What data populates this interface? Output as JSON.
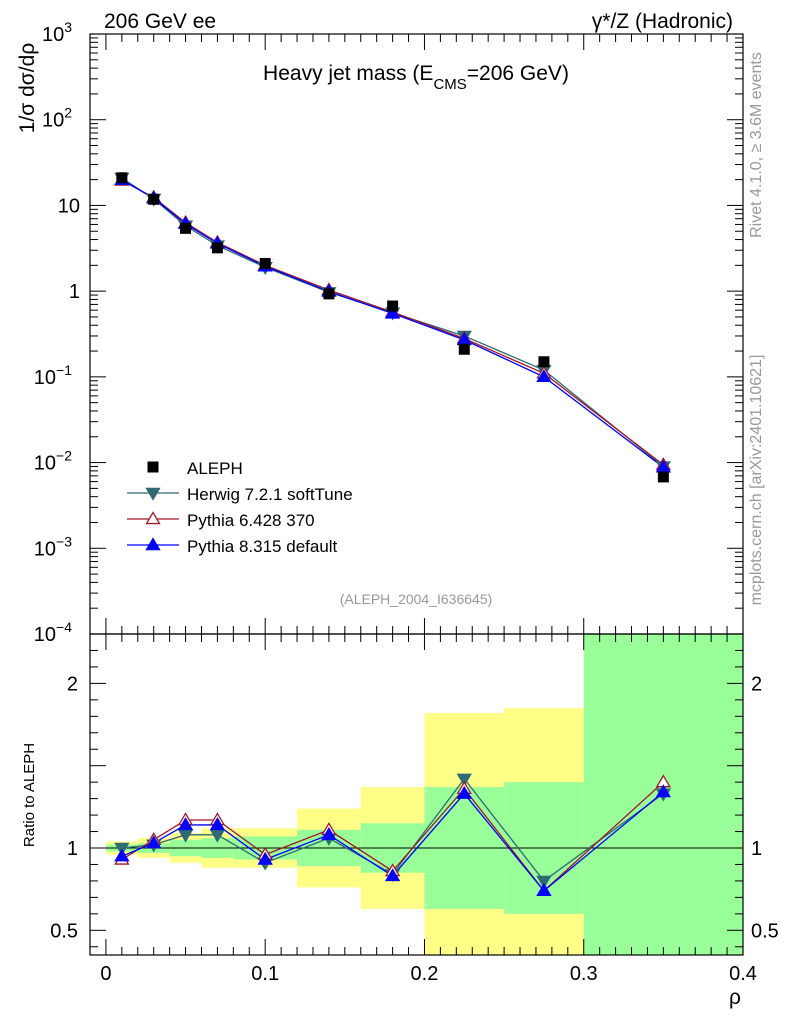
{
  "header": {
    "left": "206 GeV ee",
    "right": "γ*/Z (Hadronic)"
  },
  "side_labels": {
    "rivet": "Rivet 4.1.0, ≥ 3.6M events",
    "mcplots": "mcplots.cern.ch [arXiv:2401.10621]"
  },
  "chart_data": {
    "type": "line",
    "title_main": "Heavy jet mass (E",
    "title_sub": "CMS",
    "title_end": "=206 GeV)",
    "analysis_id": "(ALEPH_2004_I636645)",
    "xlabel": "ρ",
    "ylabel_main": "1/σ dσ/dρ",
    "ylabel_ratio": "Ratio to ALEPH",
    "xlim": [
      -0.01,
      0.4
    ],
    "ylim_main": [
      0.0001,
      1000
    ],
    "ylim_ratio": [
      0.35,
      2.3
    ],
    "x_ticks": [
      {
        "v": 0,
        "label": "0"
      },
      {
        "v": 0.1,
        "label": "0.1"
      },
      {
        "v": 0.2,
        "label": "0.2"
      },
      {
        "v": 0.3,
        "label": "0.3"
      },
      {
        "v": 0.4,
        "label": "0.4"
      }
    ],
    "y_ticks_main": [
      {
        "v": 1000,
        "base": "10",
        "exp": "3"
      },
      {
        "v": 100,
        "base": "10",
        "exp": "2"
      },
      {
        "v": 10,
        "base": "10",
        "exp": ""
      },
      {
        "v": 1,
        "base": "1",
        "exp": ""
      },
      {
        "v": 0.1,
        "base": "10",
        "exp": "−1"
      },
      {
        "v": 0.01,
        "base": "10",
        "exp": "−2"
      },
      {
        "v": 0.001,
        "base": "10",
        "exp": "−3"
      },
      {
        "v": 0.0001,
        "base": "10",
        "exp": "−4"
      }
    ],
    "y_ticks_ratio": [
      {
        "v": 0.5,
        "label": "0.5"
      },
      {
        "v": 1,
        "label": "1"
      },
      {
        "v": 2,
        "label": "2"
      }
    ],
    "data": {
      "name": "ALEPH",
      "color": "#000000",
      "x": [
        0.01,
        0.03,
        0.05,
        0.07,
        0.1,
        0.14,
        0.18,
        0.225,
        0.275,
        0.35
      ],
      "y": [
        21.0,
        11.8,
        5.4,
        3.2,
        2.1,
        0.93,
        0.67,
        0.21,
        0.15,
        0.0068
      ]
    },
    "bins": [
      0.0,
      0.02,
      0.04,
      0.06,
      0.08,
      0.12,
      0.16,
      0.2,
      0.25,
      0.3,
      0.4
    ],
    "bands": {
      "stat_color": "#99ff99",
      "total_color": "#ffff88",
      "stat": [
        [
          0.98,
          1.02
        ],
        [
          0.97,
          1.03
        ],
        [
          0.95,
          1.05
        ],
        [
          0.94,
          1.06
        ],
        [
          0.93,
          1.07
        ],
        [
          0.89,
          1.11
        ],
        [
          0.85,
          1.15
        ],
        [
          0.63,
          1.37
        ],
        [
          0.6,
          1.4
        ],
        [
          0.35,
          2.3
        ]
      ],
      "total": [
        [
          0.96,
          1.04
        ],
        [
          0.94,
          1.06
        ],
        [
          0.91,
          1.09
        ],
        [
          0.88,
          1.12
        ],
        [
          0.88,
          1.12
        ],
        [
          0.76,
          1.24
        ],
        [
          0.63,
          1.37
        ],
        [
          0.35,
          1.82
        ],
        [
          0.35,
          1.85
        ],
        [
          0.35,
          2.3
        ]
      ]
    },
    "series": [
      {
        "name": "Herwig 7.2.1 softTune",
        "color": "#2e6b75",
        "marker": "tri-down-filled",
        "x": [
          0.01,
          0.03,
          0.05,
          0.07,
          0.1,
          0.14,
          0.18,
          0.225,
          0.275,
          0.35
        ],
        "y": [
          20.9,
          11.9,
          5.8,
          3.4,
          1.9,
          0.97,
          0.56,
          0.3,
          0.12,
          0.009
        ],
        "ratio": [
          1.0,
          1.02,
          1.08,
          1.08,
          0.91,
          1.06,
          0.84,
          1.42,
          0.8,
          1.33
        ]
      },
      {
        "name": "Pythia 6.428 370",
        "color": "#a0182a",
        "marker": "tri-up-open",
        "x": [
          0.01,
          0.03,
          0.05,
          0.07,
          0.1,
          0.14,
          0.18,
          0.225,
          0.275,
          0.35
        ],
        "y": [
          19.5,
          12.4,
          6.3,
          3.7,
          2.0,
          1.03,
          0.57,
          0.28,
          0.11,
          0.0094
        ],
        "ratio": [
          0.93,
          1.05,
          1.17,
          1.17,
          0.96,
          1.11,
          0.86,
          1.36,
          0.74,
          1.4
        ]
      },
      {
        "name": "Pythia 8.315 default",
        "color": "#0000ff",
        "marker": "tri-up-filled",
        "x": [
          0.01,
          0.03,
          0.05,
          0.07,
          0.1,
          0.14,
          0.18,
          0.225,
          0.275,
          0.35
        ],
        "y": [
          19.9,
          12.1,
          6.1,
          3.6,
          1.95,
          0.99,
          0.55,
          0.27,
          0.1,
          0.0088
        ],
        "ratio": [
          0.95,
          1.03,
          1.14,
          1.14,
          0.93,
          1.08,
          0.83,
          1.33,
          0.74,
          1.34
        ]
      }
    ]
  }
}
